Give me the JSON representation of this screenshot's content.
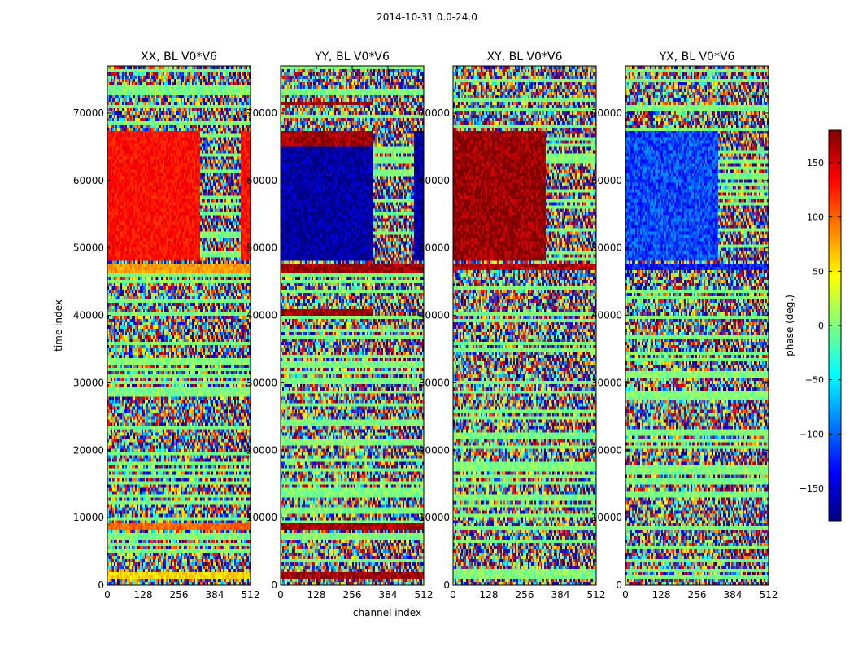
{
  "figure": {
    "suptitle": "2014-10-31 0.0-24.0",
    "xlabel": "channel index",
    "ylabel": "time index"
  },
  "colorbar": {
    "label": "phase (deg.)",
    "range": [
      -180,
      180
    ],
    "ticks": [
      -150,
      -100,
      -50,
      0,
      50,
      100,
      150
    ],
    "tick_labels": [
      "−150",
      "−100",
      "−50",
      "0",
      "50",
      "100",
      "150"
    ],
    "colors": [
      "#00007f",
      "#0000ff",
      "#007fff",
      "#00ffff",
      "#7fff7f",
      "#ffff00",
      "#ff7f00",
      "#ff0000",
      "#7f0000"
    ]
  },
  "chart_data": [
    {
      "type": "heatmap",
      "title": "XX, BL V0*V6",
      "xlabel": "channel index",
      "ylabel": "time index",
      "xlim": [
        0,
        512
      ],
      "ylim": [
        0,
        77000
      ],
      "xticks": [
        0,
        128,
        256,
        384,
        512
      ],
      "yticks": [
        0,
        10000,
        20000,
        30000,
        40000,
        50000,
        60000,
        70000
      ],
      "colorscale": "jet",
      "vrange": [
        -180,
        180
      ],
      "regions": [
        {
          "x": [
            0,
            330
          ],
          "y": [
            48000,
            67500
          ],
          "phase": 130
        },
        {
          "x": [
            480,
            512
          ],
          "y": [
            48000,
            67500
          ],
          "phase": 130
        },
        {
          "x": [
            0,
            512
          ],
          "y": [
            46300,
            47500
          ],
          "phase": 80
        },
        {
          "x": [
            0,
            512
          ],
          "y": [
            8200,
            9000
          ],
          "phase": 100
        },
        {
          "x": [
            0,
            512
          ],
          "y": [
            1200,
            1800
          ],
          "phase": 60
        }
      ]
    },
    {
      "type": "heatmap",
      "title": "YY, BL V0*V6",
      "xlabel": "channel index",
      "ylabel": "time index",
      "xlim": [
        0,
        512
      ],
      "ylim": [
        0,
        77000
      ],
      "xticks": [
        0,
        128,
        256,
        384,
        512
      ],
      "yticks": [
        0,
        10000,
        20000,
        30000,
        40000,
        50000,
        60000,
        70000
      ],
      "colorscale": "jet",
      "vrange": [
        -180,
        180
      ],
      "regions": [
        {
          "x": [
            0,
            330
          ],
          "y": [
            48000,
            67500
          ],
          "phase": -170
        },
        {
          "x": [
            475,
            512
          ],
          "y": [
            48000,
            67500
          ],
          "phase": -170
        },
        {
          "x": [
            0,
            330
          ],
          "y": [
            65000,
            67500
          ],
          "phase": 175
        },
        {
          "x": [
            0,
            512
          ],
          "y": [
            46300,
            47500
          ],
          "phase": 175
        },
        {
          "x": [
            0,
            330
          ],
          "y": [
            71000,
            71800
          ],
          "phase": 175
        },
        {
          "x": [
            0,
            330
          ],
          "y": [
            40000,
            41000
          ],
          "phase": 175
        },
        {
          "x": [
            0,
            512
          ],
          "y": [
            8200,
            9000
          ],
          "phase": 175
        },
        {
          "x": [
            0,
            512
          ],
          "y": [
            1200,
            1800
          ],
          "phase": 175
        }
      ]
    },
    {
      "type": "heatmap",
      "title": "XY, BL V0*V6",
      "xlabel": "channel index",
      "ylabel": "time index",
      "xlim": [
        0,
        512
      ],
      "ylim": [
        0,
        77000
      ],
      "xticks": [
        0,
        128,
        256,
        384,
        512
      ],
      "yticks": [
        0,
        10000,
        20000,
        30000,
        40000,
        50000,
        60000,
        70000
      ],
      "colorscale": "jet",
      "vrange": [
        -180,
        180
      ],
      "regions": [
        {
          "x": [
            0,
            330
          ],
          "y": [
            48000,
            67500
          ],
          "phase": 175
        },
        {
          "x": [
            0,
            512
          ],
          "y": [
            46800,
            47500
          ],
          "phase": 160
        }
      ]
    },
    {
      "type": "heatmap",
      "title": "YX, BL V0*V6",
      "xlabel": "channel index",
      "ylabel": "time index",
      "xlim": [
        0,
        512
      ],
      "ylim": [
        0,
        77000
      ],
      "xticks": [
        0,
        128,
        256,
        384,
        512
      ],
      "yticks": [
        0,
        10000,
        20000,
        30000,
        40000,
        50000,
        60000,
        70000
      ],
      "colorscale": "jet",
      "vrange": [
        -180,
        180
      ],
      "regions": [
        {
          "x": [
            0,
            330
          ],
          "y": [
            48000,
            67500
          ],
          "phase": -110
        },
        {
          "x": [
            0,
            512
          ],
          "y": [
            46500,
            47500
          ],
          "phase": -130
        }
      ]
    }
  ]
}
